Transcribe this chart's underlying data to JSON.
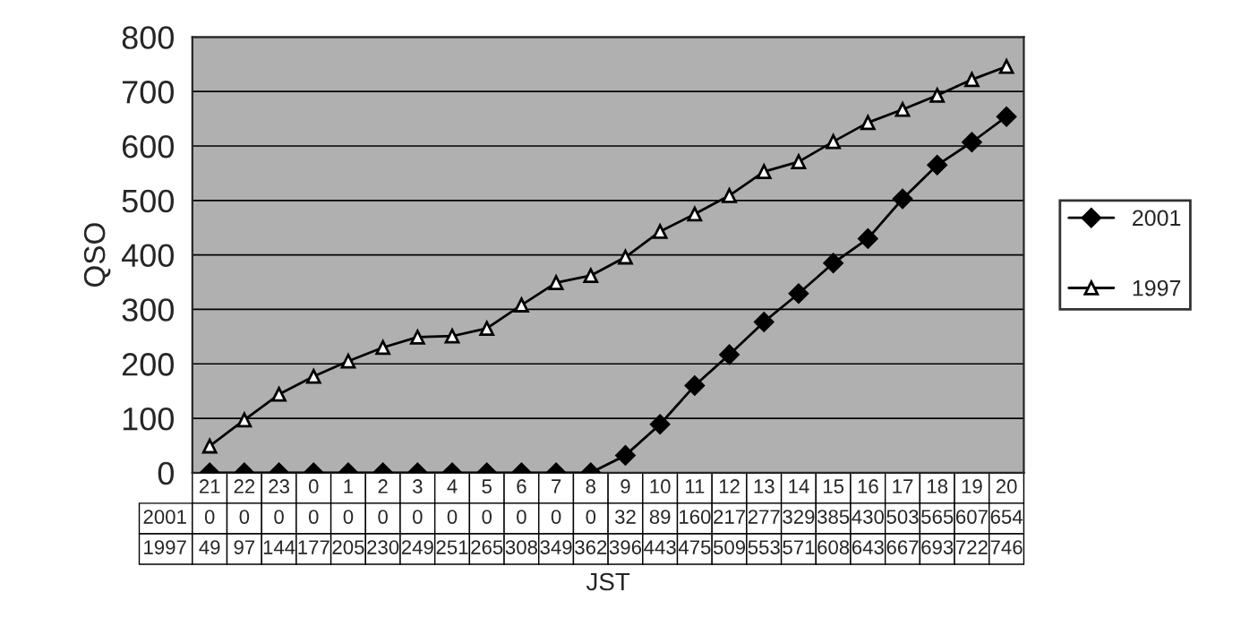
{
  "chart_data": {
    "type": "line",
    "xlabel": "JST",
    "ylabel": "QSO",
    "categories": [
      "21",
      "22",
      "23",
      "0",
      "1",
      "2",
      "3",
      "4",
      "5",
      "6",
      "7",
      "8",
      "9",
      "10",
      "11",
      "12",
      "13",
      "14",
      "15",
      "16",
      "17",
      "18",
      "19",
      "20"
    ],
    "series": [
      {
        "name": "2001",
        "color": "#000000",
        "marker": "diamond",
        "values": [
          0,
          0,
          0,
          0,
          0,
          0,
          0,
          0,
          0,
          0,
          0,
          0,
          32,
          89,
          160,
          217,
          277,
          329,
          385,
          430,
          503,
          565,
          607,
          654
        ]
      },
      {
        "name": "1997",
        "color": "#ffffff",
        "marker": "triangle",
        "values": [
          49,
          97,
          144,
          177,
          205,
          230,
          249,
          251,
          265,
          308,
          349,
          362,
          396,
          443,
          475,
          509,
          553,
          571,
          608,
          643,
          667,
          693,
          722,
          746
        ]
      }
    ],
    "ylim": [
      0,
      800
    ],
    "yticks": [
      0,
      100,
      200,
      300,
      400,
      500,
      600,
      700,
      800
    ],
    "grid": "y",
    "legend": "right",
    "data_labels": true
  }
}
